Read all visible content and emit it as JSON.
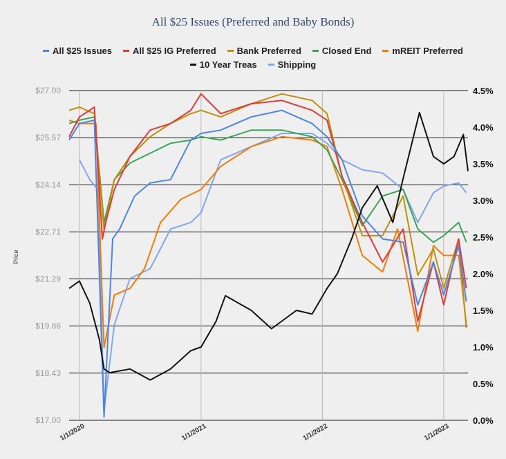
{
  "chart_data": {
    "type": "line",
    "title": "All $25 Issues (Preferred and Baby Bonds)",
    "ylabel": "Price",
    "xlabel": "",
    "x_ticks": [
      "1/1/2020",
      "1/1/2021",
      "1/1/2022",
      "1/1/2023"
    ],
    "x_range": [
      "2019-12-01",
      "2023-03-15"
    ],
    "y_left": {
      "range": [
        17.0,
        27.0
      ],
      "ticks": [
        "$17.00",
        "$18.43",
        "$19.86",
        "$21.29",
        "$22.71",
        "$24.14",
        "$25.57",
        "$27.00"
      ],
      "color": "#9a9a9a"
    },
    "y_right": {
      "range": [
        0.0,
        4.5
      ],
      "ticks": [
        "0.0%",
        "0.5%",
        "1.0%",
        "1.5%",
        "2.0%",
        "2.5%",
        "3.0%",
        "3.5%",
        "4.0%",
        "4.5%"
      ],
      "color": "#111111"
    },
    "grid": "horizontal at left ticks; vertical at year starts",
    "legend_position": "top",
    "series": [
      {
        "name": "All $25 Issues",
        "color": "#4a86e8",
        "axis": "left",
        "x": [
          "2019-12-01",
          "2020-01-01",
          "2020-02-15",
          "2020-03-15",
          "2020-04-10",
          "2020-05-01",
          "2020-06-15",
          "2020-08-01",
          "2020-10-01",
          "2020-12-01",
          "2021-01-01",
          "2021-03-01",
          "2021-06-01",
          "2021-09-01",
          "2021-12-01",
          "2022-01-15",
          "2022-03-01",
          "2022-05-01",
          "2022-07-01",
          "2022-09-01",
          "2022-10-15",
          "2022-12-01",
          "2023-01-01",
          "2023-02-15",
          "2023-03-10"
        ],
        "values": [
          25.5,
          26.0,
          26.1,
          17.1,
          22.5,
          22.8,
          23.8,
          24.2,
          24.3,
          25.5,
          25.7,
          25.8,
          26.2,
          26.4,
          26.0,
          25.6,
          24.9,
          23.2,
          22.5,
          22.4,
          20.5,
          21.8,
          20.8,
          22.3,
          20.6
        ]
      },
      {
        "name": "All $25 IG Preferred",
        "color": "#e53935",
        "axis": "left",
        "x": [
          "2019-12-01",
          "2020-01-01",
          "2020-02-15",
          "2020-03-10",
          "2020-03-20",
          "2020-04-15",
          "2020-06-01",
          "2020-08-01",
          "2020-10-01",
          "2020-12-01",
          "2021-01-01",
          "2021-03-01",
          "2021-06-01",
          "2021-09-01",
          "2021-12-01",
          "2022-01-15",
          "2022-03-01",
          "2022-05-01",
          "2022-07-01",
          "2022-09-01",
          "2022-10-15",
          "2022-12-01",
          "2023-01-01",
          "2023-02-15",
          "2023-03-10"
        ],
        "values": [
          25.6,
          26.2,
          26.5,
          22.5,
          23.0,
          24.0,
          25.0,
          25.8,
          26.0,
          26.4,
          26.9,
          26.3,
          26.6,
          26.7,
          26.4,
          26.1,
          24.4,
          23.0,
          21.8,
          22.8,
          20.0,
          21.8,
          20.5,
          22.5,
          21.0
        ]
      },
      {
        "name": "Bank Preferred",
        "color": "#bf9000",
        "axis": "left",
        "x": [
          "2019-12-01",
          "2020-01-01",
          "2020-02-15",
          "2020-03-15",
          "2020-04-15",
          "2020-06-01",
          "2020-08-01",
          "2020-10-01",
          "2020-12-01",
          "2021-01-01",
          "2021-03-01",
          "2021-06-01",
          "2021-09-01",
          "2021-12-01",
          "2022-01-15",
          "2022-03-01",
          "2022-05-01",
          "2022-07-01",
          "2022-09-01",
          "2022-10-15",
          "2022-12-01",
          "2023-01-01",
          "2023-02-15",
          "2023-03-10"
        ],
        "values": [
          26.4,
          26.5,
          26.3,
          22.8,
          24.3,
          25.0,
          25.6,
          26.0,
          26.3,
          26.4,
          26.2,
          26.6,
          26.9,
          26.7,
          26.3,
          24.4,
          22.6,
          22.6,
          23.8,
          21.4,
          22.2,
          21.0,
          22.5,
          19.8
        ]
      },
      {
        "name": "Closed End",
        "color": "#34a853",
        "axis": "left",
        "x": [
          "2019-12-01",
          "2020-01-01",
          "2020-02-15",
          "2020-03-15",
          "2020-04-15",
          "2020-06-01",
          "2020-08-01",
          "2020-10-01",
          "2020-12-01",
          "2021-01-01",
          "2021-03-01",
          "2021-06-01",
          "2021-09-01",
          "2021-12-01",
          "2022-01-15",
          "2022-03-01",
          "2022-05-01",
          "2022-07-01",
          "2022-09-01",
          "2022-10-15",
          "2022-12-01",
          "2023-01-01",
          "2023-02-15",
          "2023-03-10"
        ],
        "values": [
          26.0,
          26.1,
          26.2,
          23.0,
          24.3,
          24.8,
          25.1,
          25.4,
          25.5,
          25.6,
          25.5,
          25.8,
          25.8,
          25.6,
          25.2,
          24.3,
          22.9,
          23.8,
          24.0,
          22.8,
          22.4,
          22.6,
          23.0,
          22.4
        ]
      },
      {
        "name": "mREIT Preferred",
        "color": "#f57c00",
        "axis": "left",
        "x": [
          "2019-12-01",
          "2020-01-01",
          "2020-02-20",
          "2020-03-15",
          "2020-04-15",
          "2020-06-01",
          "2020-07-15",
          "2020-09-01",
          "2020-11-01",
          "2021-01-01",
          "2021-03-01",
          "2021-06-01",
          "2021-09-01",
          "2021-12-01",
          "2022-01-15",
          "2022-03-01",
          "2022-05-01",
          "2022-07-01",
          "2022-08-15",
          "2022-10-15",
          "2022-12-01",
          "2023-01-01",
          "2023-02-15",
          "2023-03-10"
        ],
        "values": [
          26.1,
          26.0,
          26.0,
          19.2,
          20.8,
          21.0,
          21.6,
          23.0,
          23.7,
          24.0,
          24.7,
          25.3,
          25.6,
          25.5,
          25.3,
          24.0,
          22.0,
          21.5,
          22.8,
          19.7,
          22.3,
          22.0,
          22.0,
          19.9
        ]
      },
      {
        "name": "10 Year Treas",
        "color": "#111111",
        "axis": "right",
        "x": [
          "2019-12-01",
          "2020-01-01",
          "2020-02-01",
          "2020-03-01",
          "2020-03-15",
          "2020-04-01",
          "2020-06-01",
          "2020-08-01",
          "2020-10-01",
          "2020-12-01",
          "2021-01-01",
          "2021-02-15",
          "2021-03-15",
          "2021-06-01",
          "2021-08-01",
          "2021-10-15",
          "2021-12-01",
          "2022-01-15",
          "2022-02-15",
          "2022-04-01",
          "2022-05-01",
          "2022-06-15",
          "2022-08-01",
          "2022-09-01",
          "2022-10-20",
          "2022-12-01",
          "2023-01-01",
          "2023-02-01",
          "2023-03-01",
          "2023-03-15"
        ],
        "values": [
          1.8,
          1.9,
          1.6,
          1.1,
          0.7,
          0.65,
          0.7,
          0.55,
          0.7,
          0.95,
          1.0,
          1.35,
          1.7,
          1.5,
          1.25,
          1.5,
          1.45,
          1.8,
          2.0,
          2.5,
          2.9,
          3.2,
          2.7,
          3.3,
          4.2,
          3.6,
          3.5,
          3.6,
          3.9,
          3.4
        ]
      },
      {
        "name": "Shipping",
        "color": "#7ea7f0",
        "axis": "left",
        "x": [
          "2020-01-01",
          "2020-02-01",
          "2020-02-25",
          "2020-03-15",
          "2020-04-15",
          "2020-06-01",
          "2020-08-01",
          "2020-10-01",
          "2020-12-01",
          "2021-01-01",
          "2021-03-01",
          "2021-06-01",
          "2021-09-01",
          "2021-12-01",
          "2022-01-15",
          "2022-03-01",
          "2022-05-01",
          "2022-07-01",
          "2022-09-01",
          "2022-10-15",
          "2022-12-01",
          "2023-01-01",
          "2023-02-15",
          "2023-03-10"
        ],
        "values": [
          24.9,
          24.3,
          24.0,
          17.3,
          19.9,
          21.3,
          21.6,
          22.8,
          23.0,
          23.3,
          24.9,
          25.3,
          25.7,
          25.7,
          25.4,
          24.9,
          24.6,
          24.5,
          24.0,
          23.0,
          23.9,
          24.1,
          24.2,
          23.9
        ]
      }
    ]
  }
}
